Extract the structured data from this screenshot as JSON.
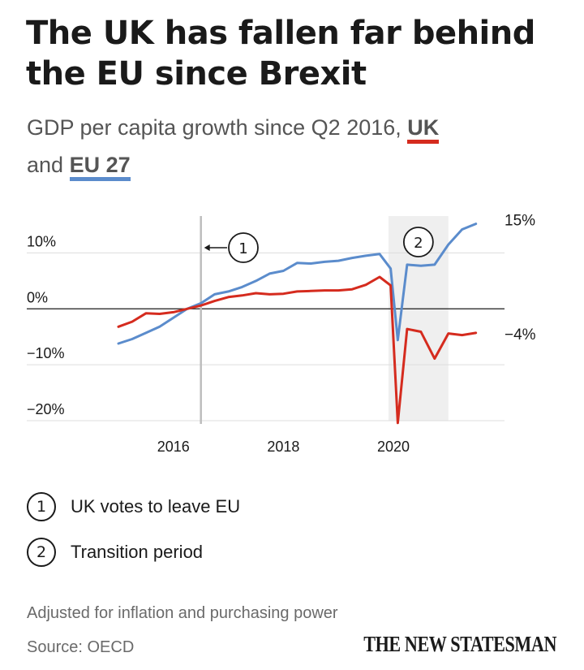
{
  "title": "The UK has fallen far behind the EU since Brexit",
  "subtitle": {
    "prefix": "GDP per capita growth since Q2 2016,",
    "uk_label": "UK",
    "joiner": "and",
    "eu_label": "EU 27"
  },
  "colors": {
    "uk": "#d52b1e",
    "eu": "#5b8ccc"
  },
  "chart_data": {
    "type": "line",
    "title": "",
    "xlabel": "",
    "ylabel": "",
    "xlim": [
      2015.0,
      2021.8
    ],
    "ylim": [
      -20,
      15
    ],
    "y_ticks": [
      {
        "value": 10,
        "label": "10%"
      },
      {
        "value": 0,
        "label": "0%"
      },
      {
        "value": -10,
        "label": "−10%"
      },
      {
        "value": -20,
        "label": "−20%"
      }
    ],
    "x_ticks": [
      {
        "value": 2016,
        "label": "2016"
      },
      {
        "value": 2018,
        "label": "2018"
      },
      {
        "value": 2020,
        "label": "2020"
      }
    ],
    "grid": true,
    "series": [
      {
        "name": "EU 27",
        "color": "#5b8ccc",
        "end_label": "15%",
        "points": [
          [
            2015.0,
            -6.2
          ],
          [
            2015.25,
            -5.4
          ],
          [
            2015.5,
            -4.3
          ],
          [
            2015.75,
            -3.2
          ],
          [
            2016.0,
            -1.6
          ],
          [
            2016.25,
            0.0
          ],
          [
            2016.5,
            1.0
          ],
          [
            2016.75,
            2.6
          ],
          [
            2017.0,
            3.1
          ],
          [
            2017.25,
            3.9
          ],
          [
            2017.5,
            5.0
          ],
          [
            2017.75,
            6.3
          ],
          [
            2018.0,
            6.8
          ],
          [
            2018.25,
            8.2
          ],
          [
            2018.5,
            8.1
          ],
          [
            2018.75,
            8.4
          ],
          [
            2019.0,
            8.6
          ],
          [
            2019.25,
            9.1
          ],
          [
            2019.5,
            9.5
          ],
          [
            2019.75,
            9.8
          ],
          [
            2019.95,
            7.2
          ],
          [
            2020.08,
            -5.6
          ],
          [
            2020.25,
            7.9
          ],
          [
            2020.5,
            7.7
          ],
          [
            2020.75,
            7.9
          ],
          [
            2021.0,
            11.5
          ],
          [
            2021.25,
            14.2
          ],
          [
            2021.5,
            15.2
          ]
        ]
      },
      {
        "name": "UK",
        "color": "#d52b1e",
        "end_label": "−4%",
        "points": [
          [
            2015.0,
            -3.2
          ],
          [
            2015.25,
            -2.3
          ],
          [
            2015.5,
            -0.8
          ],
          [
            2015.75,
            -0.9
          ],
          [
            2016.0,
            -0.6
          ],
          [
            2016.25,
            0.0
          ],
          [
            2016.5,
            0.6
          ],
          [
            2016.75,
            1.4
          ],
          [
            2017.0,
            2.1
          ],
          [
            2017.25,
            2.4
          ],
          [
            2017.5,
            2.8
          ],
          [
            2017.75,
            2.6
          ],
          [
            2018.0,
            2.7
          ],
          [
            2018.25,
            3.1
          ],
          [
            2018.5,
            3.2
          ],
          [
            2018.75,
            3.3
          ],
          [
            2019.0,
            3.3
          ],
          [
            2019.25,
            3.5
          ],
          [
            2019.5,
            4.3
          ],
          [
            2019.75,
            5.7
          ],
          [
            2019.95,
            4.2
          ],
          [
            2020.08,
            -20.4
          ],
          [
            2020.25,
            -3.6
          ],
          [
            2020.5,
            -4.1
          ],
          [
            2020.75,
            -8.9
          ],
          [
            2021.0,
            -4.4
          ],
          [
            2021.25,
            -4.7
          ],
          [
            2021.5,
            -4.3
          ]
        ]
      }
    ],
    "annotations": [
      {
        "number": "1",
        "x": 2016.5
      },
      {
        "number": "2",
        "x_start": 2020.0,
        "x_end": 2021.0
      }
    ]
  },
  "legend": [
    {
      "number": "1",
      "text": "UK votes to leave EU"
    },
    {
      "number": "2",
      "text": "Transition period"
    }
  ],
  "footnote": "Adjusted for inflation and purchasing power",
  "source": "Source: OECD",
  "logo_text": "THE NEW STATESMAN"
}
